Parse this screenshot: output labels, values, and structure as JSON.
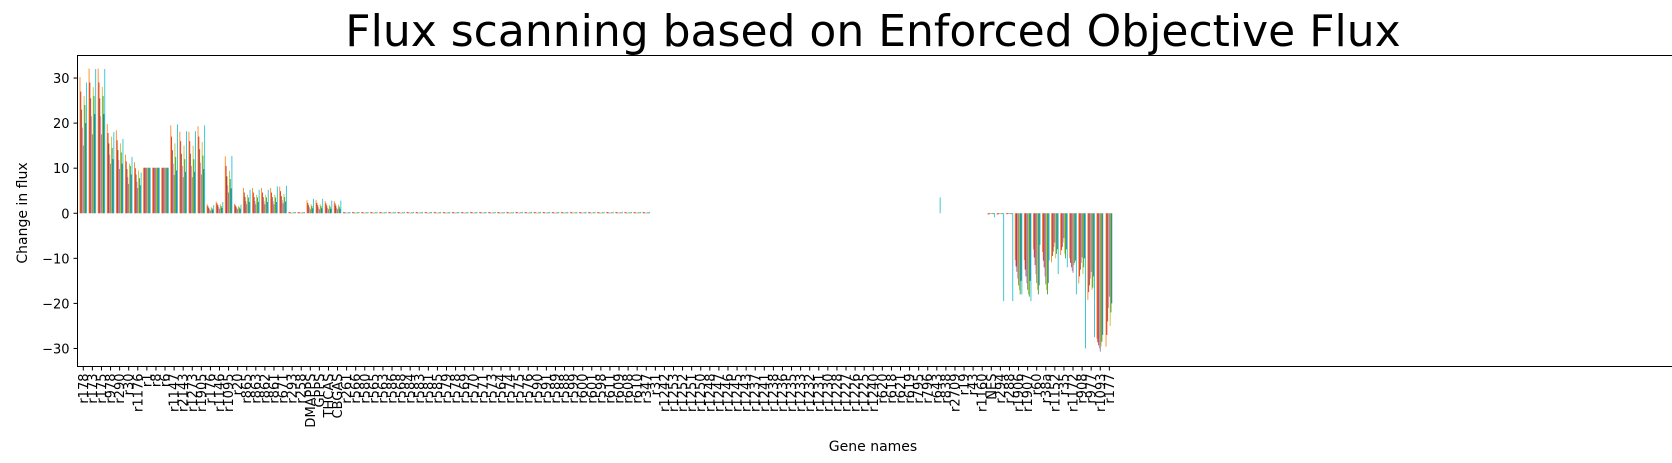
{
  "chart_data": {
    "type": "bar",
    "title": "Flux scanning based on Enforced Objective Flux",
    "xlabel": "Gene names",
    "ylabel": "Change in flux",
    "ylim": [
      -34,
      35
    ],
    "yticks": [
      30,
      20,
      10,
      0,
      -10,
      -20,
      -30
    ],
    "ytick_labels": [
      "30",
      "20",
      "10",
      "0",
      "−10",
      "−20",
      "−30"
    ],
    "grid": false,
    "legend": "none",
    "categories": [
      "r178",
      "r173",
      "r175",
      "r978",
      "r290",
      "r30",
      "r1176",
      "r1",
      "r8",
      "r6",
      "r1147",
      "r2143",
      "r1273",
      "r1905",
      "r176",
      "r1146",
      "r1095",
      "r20",
      "r865",
      "r863",
      "r862",
      "r861",
      "r671",
      "r293",
      "r258",
      "DMAPPS",
      "GPPS",
      "THCAS",
      "CBGAS",
      "r261",
      "r566",
      "r580",
      "r565",
      "r563",
      "r586",
      "r568",
      "r584",
      "r583",
      "r581",
      "r585",
      "r579",
      "r578",
      "r569",
      "r570",
      "r571",
      "r573",
      "r564",
      "r574",
      "r575",
      "r576",
      "r590",
      "r591",
      "r589",
      "r588",
      "r599",
      "r600",
      "r601",
      "r598",
      "r611",
      "r609",
      "r608",
      "r610",
      "r347",
      "r31",
      "r1242",
      "r1253",
      "r1252",
      "r1251",
      "r1250",
      "r1248",
      "r1247",
      "r1246",
      "r1245",
      "r1243",
      "r1237",
      "r1241",
      "r1238",
      "r1236",
      "r1235",
      "r1233",
      "r1232",
      "r1231",
      "r1230",
      "r1228",
      "r1227",
      "r1226",
      "r1225",
      "r1240",
      "r620",
      "r618",
      "r621",
      "r619",
      "r795",
      "r796",
      "r643",
      "r838",
      "r2709",
      "r19",
      "r43",
      "r1160",
      "NES",
      "r294",
      "r288",
      "r1906",
      "r1907",
      "r60",
      "r38a",
      "r1152",
      "r35",
      "r1172",
      "r908",
      "r977",
      "r1093",
      "r177"
    ],
    "series_colors": [
      "#ff7f0e",
      "#d62728",
      "#8c564b",
      "#e377c2",
      "#7f7f7f",
      "#bcbd22",
      "#2ca02c",
      "#1f77b4",
      "#17becf"
    ],
    "series_values": [
      [
        30.2,
        32.1,
        32.1,
        19.8,
        18.4,
        13.0,
        11.3,
        10.1,
        10.1,
        10.1,
        19.5,
        18.1,
        18.1,
        19.3,
        2.0,
        2.6,
        12.6,
        2.1,
        5.6,
        5.6,
        5.6,
        5.6,
        5.9,
        0.3,
        0.3,
        2.9,
        2.9,
        2.7,
        2.7,
        0.3,
        0.3,
        0.3,
        0.3,
        0.3,
        0.3,
        0.3,
        0.3,
        0.3,
        0.3,
        0.3,
        0.3,
        0.3,
        0.3,
        0.3,
        0.3,
        0.3,
        0.3,
        0.3,
        0.3,
        0.3,
        0.3,
        0.3,
        0.3,
        0.3,
        0.3,
        0.3,
        0.3,
        0.3,
        0.3,
        0.3,
        0.3,
        0.3,
        0.3,
        0,
        0,
        0,
        0,
        0,
        0,
        0,
        0,
        0,
        0,
        0,
        0,
        0,
        0,
        0,
        0,
        0,
        0,
        0,
        0,
        0,
        0,
        0,
        0,
        0,
        0,
        0,
        0,
        0,
        0,
        0,
        0,
        0,
        0,
        0,
        0,
        0,
        -0.3,
        -0.3,
        -0.2,
        -10.4,
        -10.4,
        -8.0,
        -8.6,
        -10.9,
        -9.3,
        -10.0,
        -15.6,
        -19.2,
        -27.8,
        -29.6
      ],
      [
        27.0,
        29.0,
        29.0,
        17.8,
        16.2,
        11.5,
        10.0,
        10.1,
        10.1,
        10.1,
        17.0,
        16.0,
        16.0,
        17.0,
        1.6,
        2.2,
        10.5,
        1.8,
        4.6,
        4.6,
        4.6,
        4.6,
        4.9,
        0.25,
        0.25,
        2.3,
        2.3,
        2.2,
        2.2,
        0.25,
        0.25,
        0.25,
        0.25,
        0.25,
        0.25,
        0.25,
        0.25,
        0.25,
        0.25,
        0.25,
        0.25,
        0.25,
        0.25,
        0.25,
        0.25,
        0.25,
        0.25,
        0.25,
        0.25,
        0.25,
        0.25,
        0.25,
        0.25,
        0.25,
        0.25,
        0.25,
        0.25,
        0.25,
        0.25,
        0.25,
        0.25,
        0.25,
        0.25,
        0,
        0,
        0,
        0,
        0,
        0,
        0,
        0,
        0,
        0,
        0,
        0,
        0,
        0,
        0,
        0,
        0,
        0,
        0,
        0,
        0,
        0,
        0,
        0,
        0,
        0,
        0,
        0,
        0,
        0,
        0,
        0,
        0,
        0,
        0,
        0,
        0,
        -0.25,
        -0.25,
        -0.2,
        -11.8,
        -12.5,
        -9.8,
        -10.5,
        -9.5,
        -8.2,
        -11.0,
        -14.0,
        -17.5,
        -28.6,
        -27.0
      ],
      [
        23.0,
        25.5,
        25.5,
        15.5,
        14.0,
        9.8,
        8.6,
        10.1,
        10.1,
        10.1,
        14.0,
        13.2,
        13.2,
        14.2,
        1.2,
        1.8,
        8.2,
        1.5,
        3.6,
        3.6,
        3.6,
        3.6,
        3.8,
        0.2,
        0.2,
        1.8,
        1.8,
        1.7,
        1.7,
        0.2,
        0.2,
        0.2,
        0.2,
        0.2,
        0.2,
        0.2,
        0.2,
        0.2,
        0.2,
        0.2,
        0.2,
        0.2,
        0.2,
        0.2,
        0.2,
        0.2,
        0.2,
        0.2,
        0.2,
        0.2,
        0.2,
        0.2,
        0.2,
        0.2,
        0.2,
        0.2,
        0.2,
        0.2,
        0.2,
        0.2,
        0.2,
        0.2,
        0.2,
        0,
        0,
        0,
        0,
        0,
        0,
        0,
        0,
        0,
        0,
        0,
        0,
        0,
        0,
        0,
        0,
        0,
        0,
        0,
        0,
        0,
        0,
        0,
        0,
        0,
        0,
        0,
        0,
        0,
        0,
        0,
        0,
        0,
        0,
        0,
        0,
        0,
        -0.2,
        -0.2,
        -0.2,
        -13.0,
        -14.0,
        -11.5,
        -12.0,
        -8.5,
        -7.5,
        -12.0,
        -12.5,
        -16.0,
        -29.3,
        -24.0
      ],
      [
        19.0,
        21.5,
        21.5,
        13.0,
        11.8,
        8.0,
        7.0,
        10.1,
        10.1,
        10.1,
        11.0,
        10.5,
        10.5,
        11.2,
        0.9,
        1.4,
        6.2,
        1.2,
        2.7,
        2.7,
        2.7,
        2.7,
        2.9,
        0.15,
        0.15,
        1.3,
        1.3,
        1.2,
        1.2,
        0.15,
        0.15,
        0.15,
        0.15,
        0.15,
        0.15,
        0.15,
        0.15,
        0.15,
        0.15,
        0.15,
        0.15,
        0.15,
        0.15,
        0.15,
        0.15,
        0.15,
        0.15,
        0.15,
        0.15,
        0.15,
        0.15,
        0.15,
        0.15,
        0.15,
        0.15,
        0.15,
        0.15,
        0.15,
        0.15,
        0.15,
        0.15,
        0.15,
        0.15,
        0,
        0,
        0,
        0,
        0,
        0,
        0,
        0,
        0,
        0,
        0,
        0,
        0,
        0,
        0,
        0,
        0,
        0,
        0,
        0,
        0,
        0,
        0,
        0,
        0,
        0,
        0,
        0,
        0,
        0,
        0,
        0,
        0,
        0,
        0,
        0,
        0,
        -0.15,
        -0.15,
        -0.15,
        -14.5,
        -15.5,
        -13.5,
        -14.0,
        -7.5,
        -6.5,
        -12.8,
        -11.0,
        -14.5,
        -30.0,
        -21.0
      ],
      [
        15.0,
        17.5,
        17.5,
        11.0,
        9.8,
        6.5,
        5.6,
        10.1,
        10.1,
        10.1,
        8.5,
        8.0,
        8.0,
        8.6,
        0.6,
        1.0,
        4.6,
        0.9,
        2.0,
        2.0,
        2.0,
        2.0,
        2.2,
        0.1,
        0.1,
        0.9,
        0.9,
        0.9,
        0.9,
        0.1,
        0.1,
        0.1,
        0.1,
        0.1,
        0.1,
        0.1,
        0.1,
        0.1,
        0.1,
        0.1,
        0.1,
        0.1,
        0.1,
        0.1,
        0.1,
        0.1,
        0.1,
        0.1,
        0.1,
        0.1,
        0.1,
        0.1,
        0.1,
        0.1,
        0.1,
        0.1,
        0.1,
        0.1,
        0.1,
        0.1,
        0.1,
        0.1,
        0.1,
        0,
        0,
        0,
        0,
        0,
        0,
        0,
        0,
        0,
        0,
        0,
        0,
        0,
        0,
        0,
        0,
        0,
        0,
        0,
        0,
        0,
        0,
        0,
        0,
        0,
        0,
        0,
        0,
        0,
        0,
        0,
        0,
        0,
        0,
        0,
        0,
        0,
        -0.1,
        -0.1,
        -0.1,
        -16.0,
        -17.0,
        -15.5,
        -15.8,
        -6.5,
        -5.5,
        -13.2,
        -9.8,
        -13.0,
        -30.7,
        -18.5
      ],
      [
        26.0,
        28.0,
        28.0,
        17.0,
        15.5,
        11.0,
        9.5,
        10.1,
        10.1,
        10.1,
        15.5,
        15.0,
        15.0,
        15.8,
        1.4,
        2.0,
        9.4,
        1.6,
        4.1,
        4.1,
        4.1,
        4.1,
        4.3,
        0.2,
        0.2,
        2.0,
        2.0,
        1.9,
        1.9,
        0.2,
        0.2,
        0.2,
        0.2,
        0.2,
        0.2,
        0.2,
        0.2,
        0.2,
        0.2,
        0.2,
        0.2,
        0.2,
        0.2,
        0.2,
        0.2,
        0.2,
        0.2,
        0.2,
        0.2,
        0.2,
        0.2,
        0.2,
        0.2,
        0.2,
        0.2,
        0.2,
        0.2,
        0.2,
        0.2,
        0.2,
        0.2,
        0.2,
        0.2,
        0,
        0,
        0,
        0,
        0,
        0,
        0,
        0,
        0,
        0,
        0,
        0,
        0,
        0,
        0,
        0,
        0,
        0,
        0,
        0,
        0,
        0,
        0,
        0,
        0,
        0,
        0,
        0,
        0,
        0,
        0,
        0,
        0,
        0,
        0,
        0,
        0,
        -0.2,
        -0.2,
        -0.2,
        -17.0,
        -18.0,
        -17.0,
        -17.0,
        -10.0,
        -9.0,
        -11.5,
        -13.5,
        -17.0,
        -29.5,
        -25.0
      ],
      [
        24.0,
        26.0,
        26.0,
        14.5,
        13.5,
        10.5,
        7.8,
        10.1,
        10.1,
        10.1,
        12.5,
        12.0,
        12.0,
        12.8,
        1.1,
        1.6,
        7.6,
        1.3,
        3.5,
        3.5,
        3.5,
        3.5,
        3.6,
        0.2,
        0.2,
        1.6,
        1.6,
        1.5,
        1.5,
        0.2,
        0.2,
        0.2,
        0.2,
        0.2,
        0.2,
        0.2,
        0.2,
        0.2,
        0.2,
        0.2,
        0.2,
        0.2,
        0.2,
        0.2,
        0.2,
        0.2,
        0.2,
        0.2,
        0.2,
        0.2,
        0.2,
        0.2,
        0.2,
        0.2,
        0.2,
        0.2,
        0.2,
        0.2,
        0.2,
        0.2,
        0.2,
        0.2,
        0.2,
        0,
        0,
        0,
        0,
        0,
        0,
        0,
        0,
        0,
        0,
        0,
        0,
        0,
        0,
        0,
        0,
        0,
        0,
        0,
        0,
        0,
        0,
        0,
        0,
        0,
        0,
        0,
        0,
        0,
        0,
        0,
        0,
        0,
        0,
        0,
        0,
        0,
        -0.2,
        -0.2,
        -0.2,
        -18.0,
        -18.5,
        -18.0,
        -18.0,
        -9.0,
        -10.0,
        -11.0,
        -12.0,
        -16.5,
        -28.5,
        -22.0
      ],
      [
        20.0,
        22.0,
        22.0,
        12.0,
        11.0,
        8.6,
        6.2,
        10.1,
        10.1,
        10.1,
        9.5,
        9.2,
        9.2,
        9.8,
        0.8,
        1.2,
        5.5,
        1.0,
        2.5,
        2.5,
        2.5,
        2.5,
        2.6,
        0.15,
        0.15,
        1.1,
        1.1,
        1.0,
        1.0,
        0.15,
        0.15,
        0.15,
        0.15,
        0.15,
        0.15,
        0.15,
        0.15,
        0.15,
        0.15,
        0.15,
        0.15,
        0.15,
        0.15,
        0.15,
        0.15,
        0.15,
        0.15,
        0.15,
        0.15,
        0.15,
        0.15,
        0.15,
        0.15,
        0.15,
        0.15,
        0.15,
        0.15,
        0.15,
        0.15,
        0.15,
        0.15,
        0.15,
        0.15,
        0,
        0,
        0,
        0,
        0,
        0,
        0,
        0,
        0,
        0,
        0,
        0,
        0,
        0,
        0,
        0,
        0,
        0,
        0,
        0,
        0,
        0,
        0,
        0,
        0,
        0,
        0,
        0,
        0,
        0,
        0,
        0,
        0,
        0,
        0,
        0,
        0,
        -0.15,
        -0.15,
        -0.15,
        -15.0,
        -15.0,
        -16.0,
        -15.5,
        -8.0,
        -8.0,
        -10.5,
        -10.0,
        -14.0,
        -27.0,
        -20.0
      ],
      [
        29.0,
        32.0,
        32.0,
        18.0,
        16.5,
        12.5,
        9.0,
        10.1,
        10.1,
        10.1,
        19.7,
        18.2,
        18.2,
        19.5,
        1.8,
        2.5,
        12.7,
        1.9,
        5.2,
        5.2,
        5.2,
        6.0,
        6.1,
        0.3,
        0.3,
        3.2,
        3.2,
        2.8,
        2.8,
        0.3,
        0.3,
        0.3,
        0.3,
        0.3,
        0.3,
        0.3,
        0.3,
        0.3,
        0.3,
        0.3,
        0.3,
        0.3,
        0.3,
        0.3,
        0.3,
        0.3,
        0.3,
        0.3,
        0.3,
        0.3,
        0.3,
        0.3,
        0.3,
        0.3,
        0.3,
        0.3,
        0.3,
        0.3,
        0.3,
        0.3,
        0.3,
        0.3,
        0.3,
        0,
        0,
        0,
        0,
        0,
        0,
        0,
        0,
        0,
        0,
        0,
        0,
        0,
        0,
        0,
        0,
        0,
        0,
        0,
        0,
        0,
        0,
        0,
        0,
        0,
        0,
        0,
        0,
        0,
        0,
        0,
        3.5,
        0,
        0,
        0,
        0,
        0,
        -0.9,
        -19.5,
        -19.5,
        -18.0,
        -19.5,
        -7.0,
        -10.5,
        -13.5,
        -12.0,
        -18.0,
        -30.0,
        -27.5
      ]
    ]
  }
}
